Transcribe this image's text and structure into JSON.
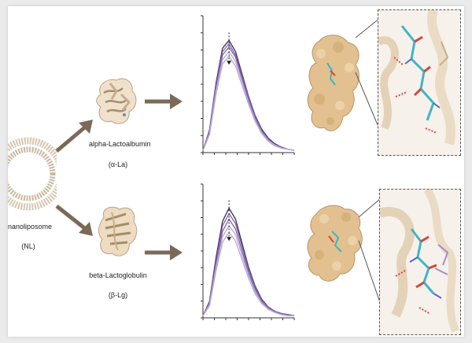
{
  "nanoliposome": {
    "name": "nanoliposome",
    "abbr": "(NL)"
  },
  "proteins": [
    {
      "name": "alpha-Lactoalbumin",
      "abbr": "(α-La)"
    },
    {
      "name": "beta-Lactoglobulin",
      "abbr": "(β-Lg)"
    }
  ],
  "colors": {
    "arrow": "#7b6a58",
    "protein": "#dcc3a0",
    "surface": "#e2c08f",
    "curve_dark": "#3c2a52",
    "curve_mid": "#7e63a8",
    "curve_light": "#b9a6d6",
    "stick_cyan": "#3fb5c4",
    "stick_red": "#d9453a"
  },
  "chart_data": [
    {
      "type": "line",
      "series": [
        {
          "values": [
            0.02,
            0.2,
            0.62,
            0.93,
            1.0,
            0.9,
            0.7,
            0.5,
            0.33,
            0.21,
            0.13,
            0.08,
            0.05,
            0.03,
            0.02
          ]
        },
        {
          "values": [
            0.02,
            0.19,
            0.6,
            0.9,
            0.97,
            0.87,
            0.68,
            0.49,
            0.32,
            0.2,
            0.12,
            0.07,
            0.05,
            0.03,
            0.02
          ]
        },
        {
          "values": [
            0.02,
            0.18,
            0.58,
            0.87,
            0.94,
            0.85,
            0.66,
            0.47,
            0.31,
            0.19,
            0.12,
            0.07,
            0.04,
            0.03,
            0.02
          ]
        },
        {
          "values": [
            0.02,
            0.17,
            0.55,
            0.83,
            0.9,
            0.81,
            0.63,
            0.45,
            0.29,
            0.18,
            0.11,
            0.07,
            0.04,
            0.03,
            0.02
          ]
        },
        {
          "values": [
            0.02,
            0.16,
            0.52,
            0.79,
            0.86,
            0.77,
            0.6,
            0.43,
            0.28,
            0.17,
            0.1,
            0.06,
            0.04,
            0.03,
            0.02
          ]
        }
      ]
    },
    {
      "type": "line",
      "series": [
        {
          "values": [
            0.02,
            0.15,
            0.55,
            0.88,
            1.0,
            0.9,
            0.68,
            0.46,
            0.29,
            0.17,
            0.1,
            0.06,
            0.04,
            0.03,
            0.02
          ]
        },
        {
          "values": [
            0.02,
            0.14,
            0.52,
            0.84,
            0.95,
            0.86,
            0.65,
            0.44,
            0.28,
            0.16,
            0.1,
            0.06,
            0.04,
            0.03,
            0.02
          ]
        },
        {
          "values": [
            0.02,
            0.13,
            0.49,
            0.79,
            0.9,
            0.81,
            0.61,
            0.41,
            0.26,
            0.15,
            0.09,
            0.05,
            0.03,
            0.02,
            0.02
          ]
        },
        {
          "values": [
            0.02,
            0.12,
            0.46,
            0.74,
            0.84,
            0.76,
            0.57,
            0.39,
            0.24,
            0.14,
            0.08,
            0.05,
            0.03,
            0.02,
            0.02
          ]
        },
        {
          "values": [
            0.02,
            0.11,
            0.43,
            0.69,
            0.78,
            0.7,
            0.53,
            0.36,
            0.22,
            0.13,
            0.08,
            0.05,
            0.03,
            0.02,
            0.02
          ]
        }
      ]
    }
  ]
}
